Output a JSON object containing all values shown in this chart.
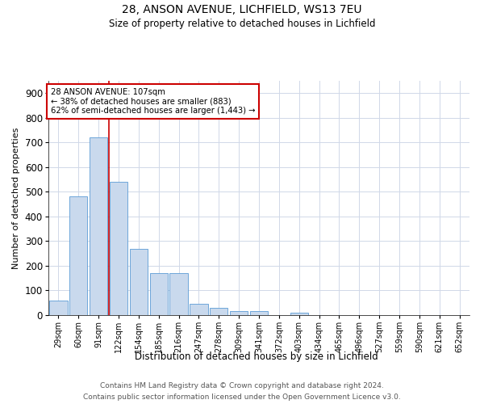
{
  "title": "28, ANSON AVENUE, LICHFIELD, WS13 7EU",
  "subtitle": "Size of property relative to detached houses in Lichfield",
  "xlabel": "Distribution of detached houses by size in Lichfield",
  "ylabel": "Number of detached properties",
  "categories": [
    "29sqm",
    "60sqm",
    "91sqm",
    "122sqm",
    "154sqm",
    "185sqm",
    "216sqm",
    "247sqm",
    "278sqm",
    "309sqm",
    "341sqm",
    "372sqm",
    "403sqm",
    "434sqm",
    "465sqm",
    "496sqm",
    "527sqm",
    "559sqm",
    "590sqm",
    "621sqm",
    "652sqm"
  ],
  "values": [
    60,
    480,
    720,
    540,
    270,
    170,
    170,
    45,
    30,
    15,
    15,
    0,
    10,
    0,
    0,
    0,
    0,
    0,
    0,
    0,
    0
  ],
  "bar_color": "#c9d9ed",
  "bar_edge_color": "#5b9bd5",
  "red_line_x": 2.5,
  "annotation_text": "28 ANSON AVENUE: 107sqm\n← 38% of detached houses are smaller (883)\n62% of semi-detached houses are larger (1,443) →",
  "annotation_box_color": "#ffffff",
  "annotation_box_edge": "#cc0000",
  "ylim": [
    0,
    950
  ],
  "yticks": [
    0,
    100,
    200,
    300,
    400,
    500,
    600,
    700,
    800,
    900
  ],
  "footer1": "Contains HM Land Registry data © Crown copyright and database right 2024.",
  "footer2": "Contains public sector information licensed under the Open Government Licence v3.0.",
  "bg_color": "#ffffff",
  "grid_color": "#d0d8e8",
  "title_fontsize": 10,
  "subtitle_fontsize": 8.5
}
